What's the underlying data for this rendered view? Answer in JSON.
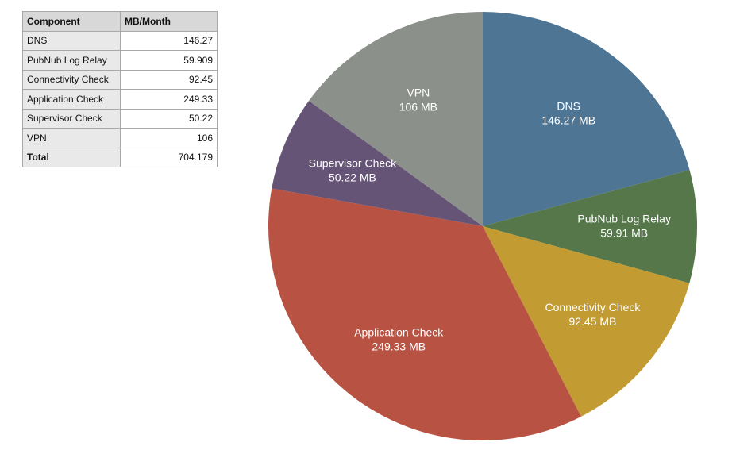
{
  "table": {
    "headers": [
      "Component",
      "MB/Month"
    ],
    "rows": [
      {
        "name": "DNS",
        "value": "146.27"
      },
      {
        "name": "PubNub Log Relay",
        "value": "59.909"
      },
      {
        "name": "Connectivity Check",
        "value": "92.45"
      },
      {
        "name": "Application Check",
        "value": "249.33"
      },
      {
        "name": "Supervisor Check",
        "value": "50.22"
      },
      {
        "name": "VPN",
        "value": "106"
      }
    ],
    "total": {
      "name": "Total",
      "value": "704.179"
    }
  },
  "chart_data": {
    "type": "pie",
    "title": "",
    "start": "12 o'clock, clockwise",
    "slices": [
      {
        "name": "DNS",
        "value": 146.27,
        "label": "146.27 MB",
        "color": "#4e7594"
      },
      {
        "name": "PubNub Log Relay",
        "value": 59.909,
        "label": "59.91 MB",
        "color": "#55774a"
      },
      {
        "name": "Connectivity Check",
        "value": 92.45,
        "label": "92.45 MB",
        "color": "#c29b33"
      },
      {
        "name": "Application Check",
        "value": 249.33,
        "label": "249.33 MB",
        "color": "#b85242"
      },
      {
        "name": "Supervisor Check",
        "value": 50.22,
        "label": "50.22 MB",
        "color": "#665477"
      },
      {
        "name": "VPN",
        "value": 106,
        "label": "106 MB",
        "color": "#8c908a"
      }
    ]
  }
}
